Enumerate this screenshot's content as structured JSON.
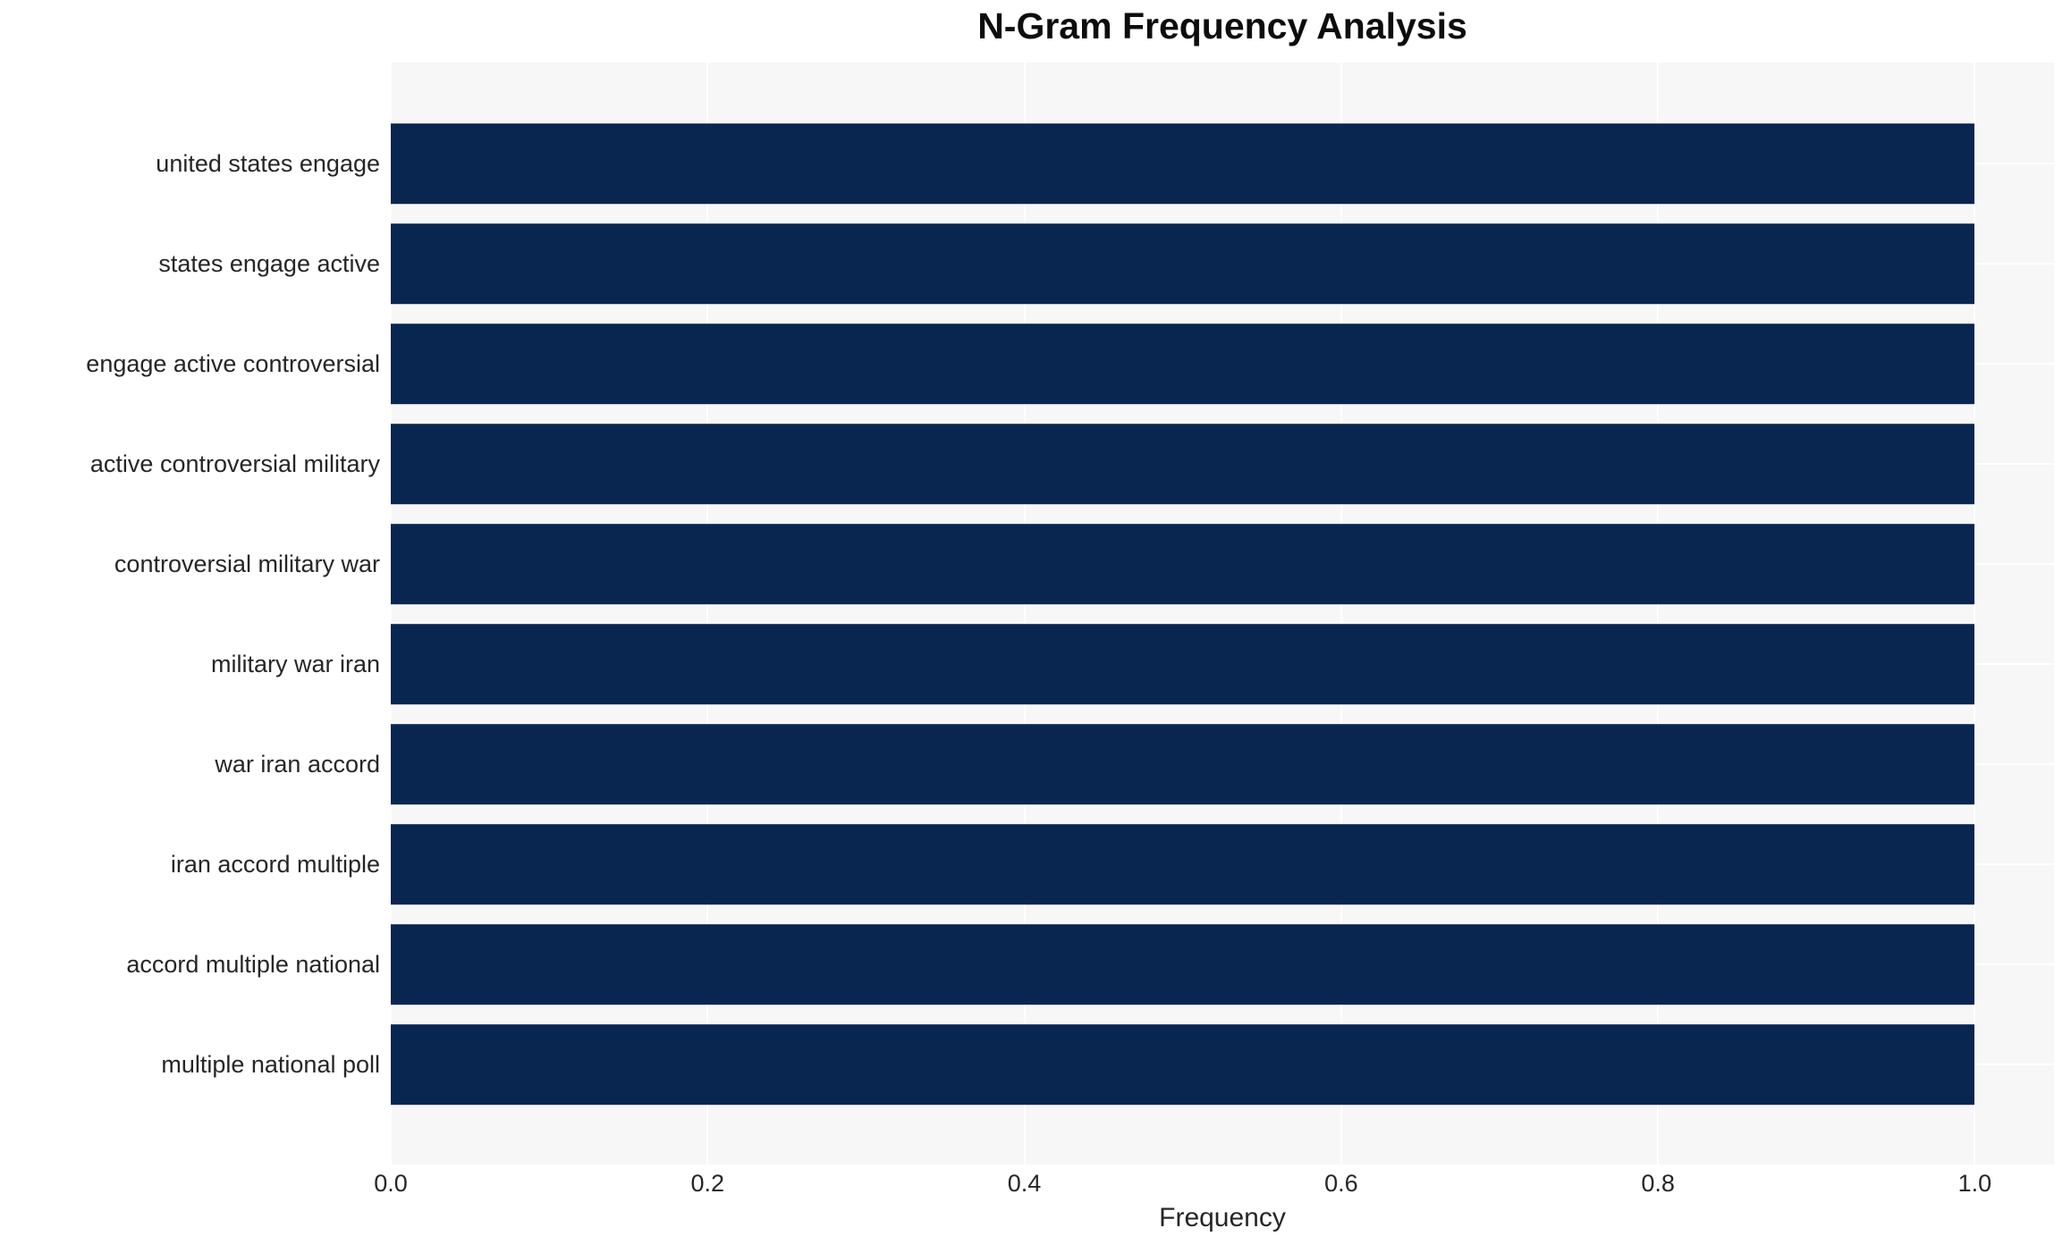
{
  "title": "N-Gram Frequency Analysis",
  "colors": {
    "bar": "#082650",
    "plot_background": "#f7f7f8",
    "gridline": "#ffffff",
    "tick_text": "#262626",
    "title_text": "#0d0d0d",
    "page_background": "#ffffff"
  },
  "chart_data": {
    "type": "bar",
    "orientation": "horizontal",
    "title": "N-Gram Frequency Analysis",
    "xlabel": "Frequency",
    "ylabel": "",
    "categories": [
      "united states engage",
      "states engage active",
      "engage active controversial",
      "active controversial military",
      "controversial military war",
      "military war iran",
      "war iran accord",
      "iran accord multiple",
      "accord multiple national",
      "multiple national poll"
    ],
    "values": [
      1.0,
      1.0,
      1.0,
      1.0,
      1.0,
      1.0,
      1.0,
      1.0,
      1.0,
      1.0
    ],
    "xlim": [
      0.0,
      1.05
    ],
    "xticks": [
      0.0,
      0.2,
      0.4,
      0.6,
      0.8,
      1.0
    ],
    "xtick_labels": [
      "0.0",
      "0.2",
      "0.4",
      "0.6",
      "0.8",
      "1.0"
    ],
    "grid": true,
    "legend": null
  }
}
